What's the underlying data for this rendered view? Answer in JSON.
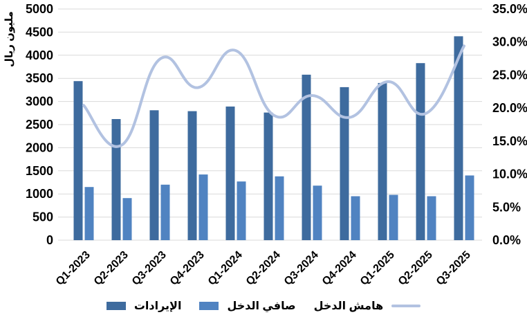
{
  "chart_data": {
    "type": "combo",
    "categories": [
      "Q1-2023",
      "Q2-2023",
      "Q3-2023",
      "Q4-2023",
      "Q1-2024",
      "Q2-2024",
      "Q3-2024",
      "Q4-2024",
      "Q1-2025",
      "Q2-2025",
      "Q3-2025"
    ],
    "series": [
      {
        "name": "الإيرادات",
        "type": "bar",
        "axis": "left",
        "color": "#3e6b9e",
        "values": [
          3440,
          2620,
          2810,
          2790,
          2890,
          2760,
          3580,
          3310,
          3400,
          3830,
          4410
        ]
      },
      {
        "name": "صافي الدخل",
        "type": "bar",
        "axis": "left",
        "color": "#5083c1",
        "values": [
          1150,
          910,
          1200,
          1420,
          1270,
          1380,
          1180,
          950,
          980,
          950,
          1400
        ]
      },
      {
        "name": "هامش الدخل",
        "type": "line",
        "axis": "right",
        "color": "#b2c2e1",
        "values": [
          20.4,
          14.4,
          27.4,
          23.1,
          28.7,
          18.9,
          21.9,
          18.6,
          24.0,
          19.2,
          29.4
        ]
      }
    ],
    "left_axis": {
      "title": "مليون ريال",
      "min": 0,
      "max": 5000,
      "step": 500,
      "ticks": [
        "0",
        "500",
        "1000",
        "1500",
        "2000",
        "2500",
        "3000",
        "3500",
        "4000",
        "4500",
        "5000"
      ]
    },
    "right_axis": {
      "min": 0,
      "max": 35,
      "step": 5,
      "ticks": [
        "0.0%",
        "5.0%",
        "10.0%",
        "15.0%",
        "20.0%",
        "25.0%",
        "30.0%",
        "35.0%"
      ]
    },
    "grid": "horizontal",
    "gridline_color": "#d9d9d9",
    "legend_position": "bottom"
  },
  "legend": {
    "items": [
      {
        "label": "الإيرادات",
        "swatch": "bar",
        "color": "#3e6b9e"
      },
      {
        "label": "صافي الدخل",
        "swatch": "bar",
        "color": "#5083c1"
      },
      {
        "label": "هامش الدخل",
        "swatch": "line",
        "color": "#b2c2e1"
      }
    ]
  },
  "colors": {
    "revenue_bar": "#3e6b9e",
    "net_income_bar": "#5083c1",
    "margin_line": "#b2c2e1",
    "gridline": "#d9d9d9",
    "text": "#000000",
    "background": "#ffffff"
  }
}
